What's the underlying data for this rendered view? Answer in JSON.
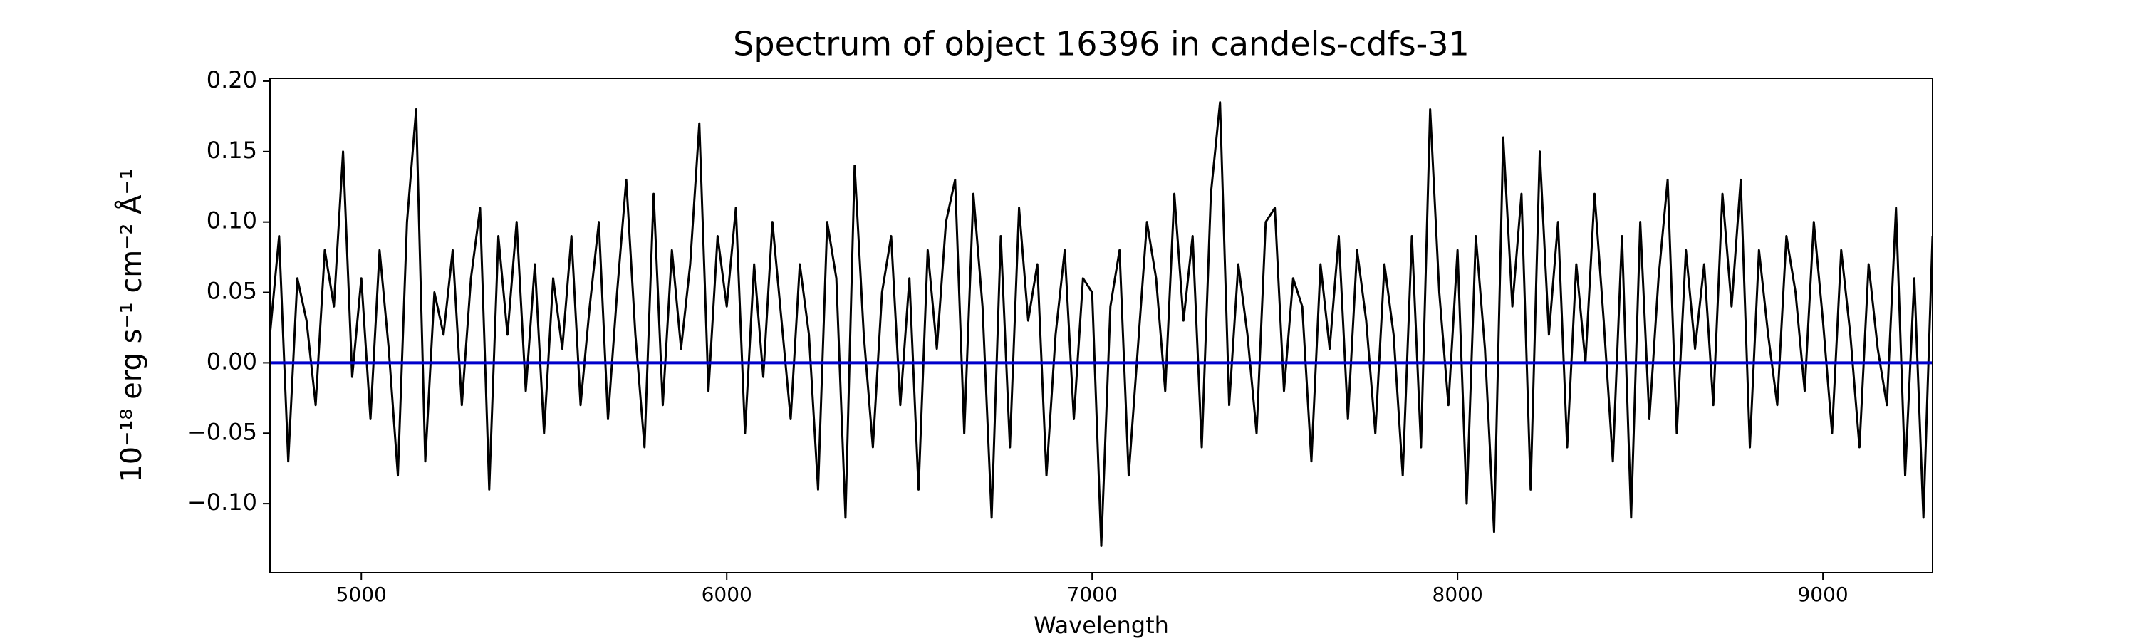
{
  "chart_data": {
    "type": "line",
    "title": "Spectrum of object 16396 in candels-cdfs-31",
    "xlabel": "Wavelength",
    "ylabel": "10⁻¹⁸ erg s⁻¹ cm⁻² Å⁻¹",
    "xlim": [
      4750,
      9300
    ],
    "ylim": [
      -0.149,
      0.202
    ],
    "xticks": [
      5000,
      6000,
      7000,
      8000,
      9000
    ],
    "yticks": [
      {
        "value": -0.1,
        "label": "−0.10"
      },
      {
        "value": -0.05,
        "label": "−0.05"
      },
      {
        "value": 0,
        "label": "0.00"
      },
      {
        "value": 0.05,
        "label": "0.05"
      },
      {
        "value": 0.1,
        "label": "0.10"
      },
      {
        "value": 0.15,
        "label": "0.15"
      },
      {
        "value": 0.2,
        "label": "0.20"
      }
    ],
    "hline": {
      "y": 0,
      "color": "#0000cc"
    },
    "x": [
      4750,
      4775,
      4800,
      4825,
      4850,
      4875,
      4900,
      4925,
      4950,
      4975,
      5000,
      5025,
      5050,
      5075,
      5100,
      5125,
      5150,
      5175,
      5200,
      5225,
      5250,
      5275,
      5300,
      5325,
      5350,
      5375,
      5400,
      5425,
      5450,
      5475,
      5500,
      5525,
      5550,
      5575,
      5600,
      5625,
      5650,
      5675,
      5700,
      5725,
      5750,
      5775,
      5800,
      5825,
      5850,
      5875,
      5900,
      5925,
      5950,
      5975,
      6000,
      6025,
      6050,
      6075,
      6100,
      6125,
      6150,
      6175,
      6200,
      6225,
      6250,
      6275,
      6300,
      6325,
      6350,
      6375,
      6400,
      6425,
      6450,
      6475,
      6500,
      6525,
      6550,
      6575,
      6600,
      6625,
      6650,
      6675,
      6700,
      6725,
      6750,
      6775,
      6800,
      6825,
      6850,
      6875,
      6900,
      6925,
      6950,
      6975,
      7000,
      7025,
      7050,
      7075,
      7100,
      7125,
      7150,
      7175,
      7200,
      7225,
      7250,
      7275,
      7300,
      7325,
      7350,
      7375,
      7400,
      7425,
      7450,
      7475,
      7500,
      7525,
      7550,
      7575,
      7600,
      7625,
      7650,
      7675,
      7700,
      7725,
      7750,
      7775,
      7800,
      7825,
      7850,
      7875,
      7900,
      7925,
      7950,
      7975,
      8000,
      8025,
      8050,
      8075,
      8100,
      8125,
      8150,
      8175,
      8200,
      8225,
      8250,
      8275,
      8300,
      8325,
      8350,
      8375,
      8400,
      8425,
      8450,
      8475,
      8500,
      8525,
      8550,
      8575,
      8600,
      8625,
      8650,
      8675,
      8700,
      8725,
      8750,
      8775,
      8800,
      8825,
      8850,
      8875,
      8900,
      8925,
      8950,
      8975,
      9000,
      9025,
      9050,
      9075,
      9100,
      9125,
      9150,
      9175,
      9200,
      9225,
      9250,
      9275,
      9300
    ],
    "series": [
      {
        "color": "#000000",
        "values": [
          0.02,
          0.09,
          -0.07,
          0.06,
          0.03,
          -0.03,
          0.08,
          0.04,
          0.15,
          -0.01,
          0.06,
          -0.04,
          0.08,
          0.01,
          -0.08,
          0.1,
          0.18,
          -0.07,
          0.05,
          0.02,
          0.08,
          -0.03,
          0.06,
          0.11,
          -0.09,
          0.09,
          0.02,
          0.1,
          -0.02,
          0.07,
          -0.05,
          0.06,
          0.01,
          0.09,
          -0.03,
          0.04,
          0.1,
          -0.04,
          0.05,
          0.13,
          0.02,
          -0.06,
          0.12,
          -0.03,
          0.08,
          0.01,
          0.07,
          0.17,
          -0.02,
          0.09,
          0.04,
          0.11,
          -0.05,
          0.07,
          -0.01,
          0.1,
          0.03,
          -0.04,
          0.07,
          0.02,
          -0.09,
          0.1,
          0.06,
          -0.11,
          0.14,
          0.02,
          -0.06,
          0.05,
          0.09,
          -0.03,
          0.06,
          -0.09,
          0.08,
          0.01,
          0.1,
          0.13,
          -0.05,
          0.12,
          0.04,
          -0.11,
          0.09,
          -0.06,
          0.11,
          0.03,
          0.07,
          -0.08,
          0.02,
          0.08,
          -0.04,
          0.06,
          0.05,
          -0.13,
          0.04,
          0.08,
          -0.08,
          0.01,
          0.1,
          0.06,
          -0.02,
          0.12,
          0.03,
          0.09,
          -0.06,
          0.12,
          0.185,
          -0.03,
          0.07,
          0.02,
          -0.05,
          0.1,
          0.11,
          -0.02,
          0.06,
          0.04,
          -0.07,
          0.07,
          0.01,
          0.09,
          -0.04,
          0.08,
          0.03,
          -0.05,
          0.07,
          0.02,
          -0.08,
          0.09,
          -0.06,
          0.18,
          0.05,
          -0.03,
          0.08,
          -0.1,
          0.09,
          0.01,
          -0.12,
          0.16,
          0.04,
          0.12,
          -0.09,
          0.15,
          0.02,
          0.1,
          -0.06,
          0.07,
          0.0,
          0.12,
          0.03,
          -0.07,
          0.09,
          -0.11,
          0.1,
          -0.04,
          0.06,
          0.13,
          -0.05,
          0.08,
          0.01,
          0.07,
          -0.03,
          0.12,
          0.04,
          0.13,
          -0.06,
          0.08,
          0.02,
          -0.03,
          0.09,
          0.05,
          -0.02,
          0.1,
          0.03,
          -0.05,
          0.08,
          0.02,
          -0.06,
          0.07,
          0.01,
          -0.03,
          0.11,
          -0.08,
          0.06,
          -0.11,
          0.09
        ]
      }
    ]
  }
}
